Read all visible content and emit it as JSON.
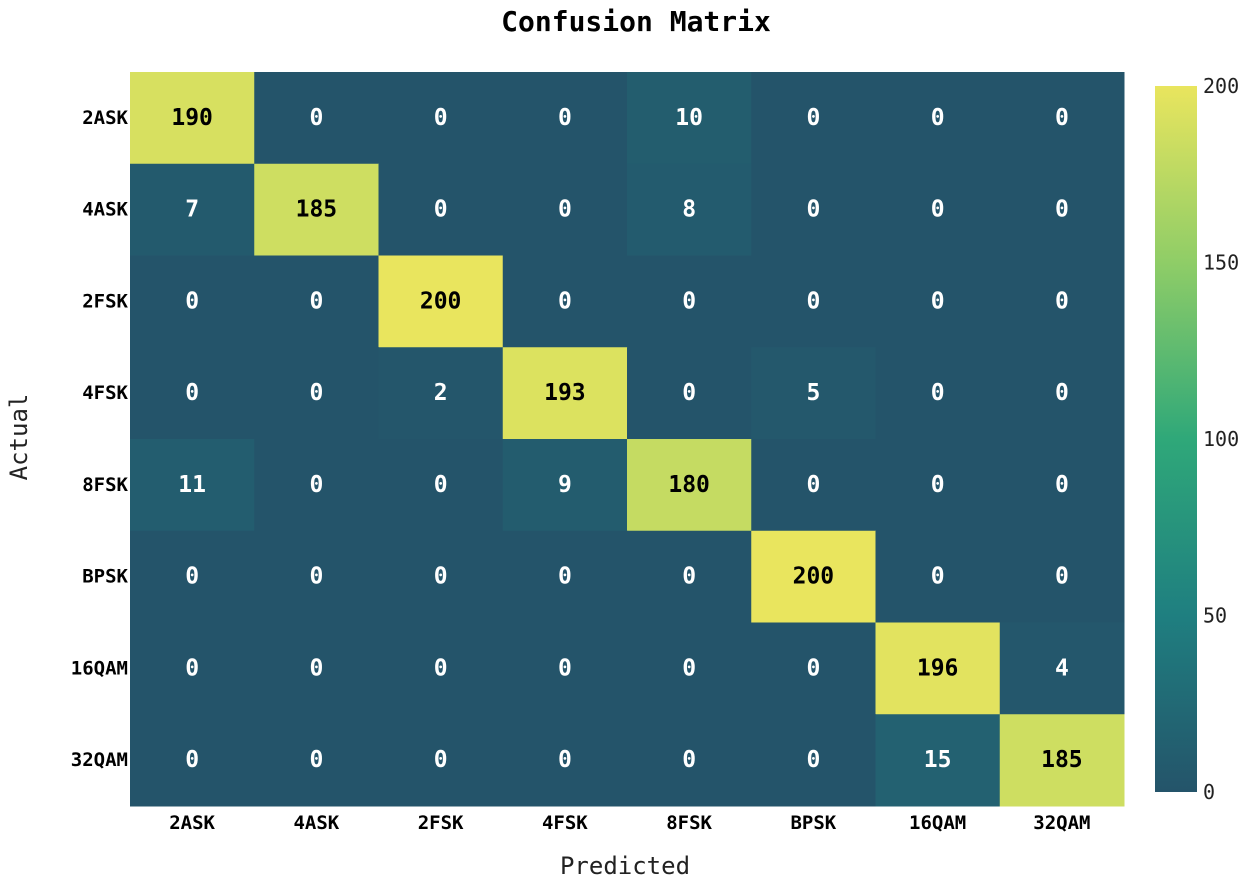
{
  "chart_data": {
    "type": "heatmap",
    "title": "Confusion Matrix",
    "xlabel": "Predicted",
    "ylabel": "Actual",
    "x_categories": [
      "2ASK",
      "4ASK",
      "2FSK",
      "4FSK",
      "8FSK",
      "BPSK",
      "16QAM",
      "32QAM"
    ],
    "y_categories": [
      "2ASK",
      "4ASK",
      "2FSK",
      "4FSK",
      "8FSK",
      "BPSK",
      "16QAM",
      "32QAM"
    ],
    "values": [
      [
        190,
        0,
        0,
        0,
        10,
        0,
        0,
        0
      ],
      [
        7,
        185,
        0,
        0,
        8,
        0,
        0,
        0
      ],
      [
        0,
        0,
        200,
        0,
        0,
        0,
        0,
        0
      ],
      [
        0,
        0,
        2,
        193,
        0,
        5,
        0,
        0
      ],
      [
        11,
        0,
        0,
        9,
        180,
        0,
        0,
        0
      ],
      [
        0,
        0,
        0,
        0,
        0,
        200,
        0,
        0
      ],
      [
        0,
        0,
        0,
        0,
        0,
        0,
        196,
        4
      ],
      [
        0,
        0,
        0,
        0,
        0,
        0,
        15,
        185
      ]
    ],
    "colorbar": {
      "range": [
        0,
        200
      ],
      "ticks": [
        0,
        50,
        100,
        150,
        200
      ]
    },
    "colors": {
      "low": "#24546a",
      "mid_low": "#1f7f80",
      "mid": "#2fa879",
      "mid_high": "#8fcd67",
      "high": "#e9e55e",
      "cell_text_dark_bg": "#ffffff",
      "cell_text_light_bg": "#000000"
    }
  }
}
